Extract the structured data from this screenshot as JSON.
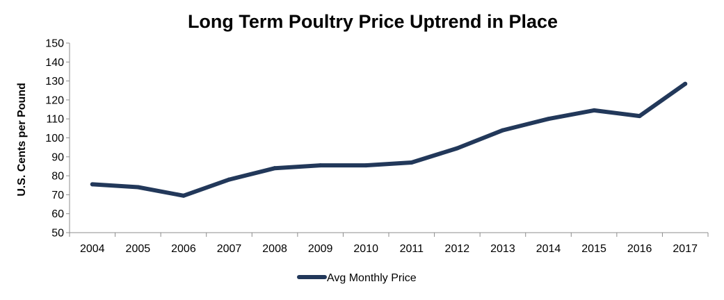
{
  "chart_data": {
    "type": "line",
    "title": "Long Term Poultry Price Uptrend in Place",
    "xlabel": "",
    "ylabel": "U.S. Cents per Pound",
    "ylim": [
      50,
      150
    ],
    "yticks": [
      50,
      60,
      70,
      80,
      90,
      100,
      110,
      120,
      130,
      140,
      150
    ],
    "categories": [
      "2004",
      "2005",
      "2006",
      "2007",
      "2008",
      "2009",
      "2010",
      "2011",
      "2012",
      "2013",
      "2014",
      "2015",
      "2016",
      "2017"
    ],
    "series": [
      {
        "name": "Avg Monthly Price",
        "color": "#22385a",
        "values": [
          75.5,
          74,
          69.5,
          78,
          84,
          85.5,
          85.5,
          87,
          94.5,
          104,
          110,
          114.5,
          111.5,
          128.5
        ]
      }
    ],
    "grid": false,
    "legend": "bottom-center"
  }
}
